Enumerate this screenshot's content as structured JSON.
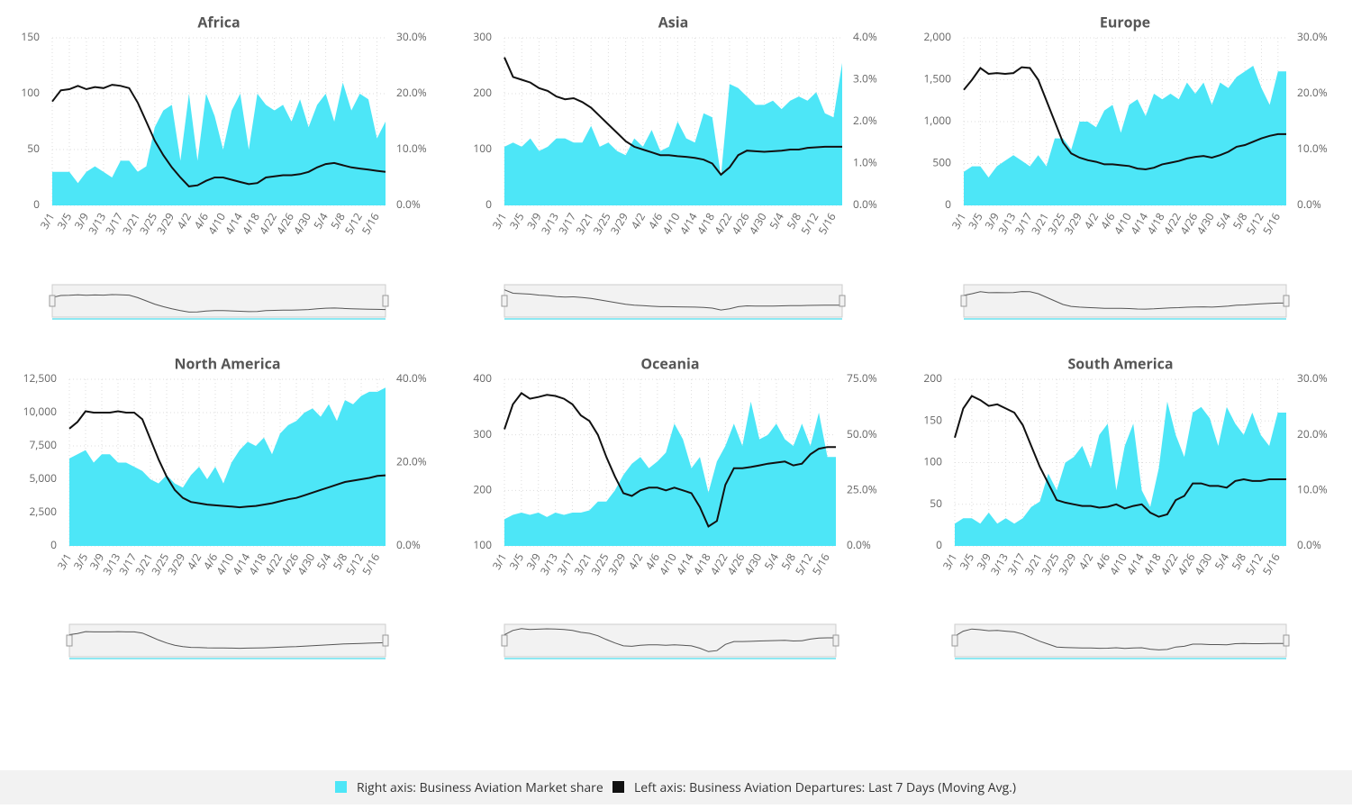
{
  "chart_data": [
    {
      "type": "area-line",
      "title": "Africa",
      "categories": [
        "3/1",
        null,
        "3/5",
        null,
        "3/9",
        null,
        "3/13",
        null,
        "3/17",
        null,
        "3/21",
        null,
        "3/25",
        null,
        "3/29",
        null,
        "4/2",
        null,
        "4/6",
        null,
        "4/10",
        null,
        "4/14",
        null,
        "4/18",
        null,
        "4/22",
        null,
        "4/26",
        null,
        "4/30",
        null,
        "5/4",
        null,
        "5/8",
        null,
        "5/12",
        null,
        "5/16",
        null
      ],
      "ylim": [
        0,
        150
      ],
      "yticks": [
        0,
        50,
        100,
        150
      ],
      "y2lim": [
        0,
        30
      ],
      "y2ticks": [
        {
          "value": 0,
          "label": "0.0%"
        },
        {
          "value": 10,
          "label": "10.0%"
        },
        {
          "value": 20,
          "label": "20.0%"
        },
        {
          "value": 30,
          "label": "30.0%"
        }
      ],
      "grid": true,
      "series": [
        {
          "name": "Right axis: Business Aviation Market share",
          "color": "#4de6f7",
          "axis": "y2",
          "values": [
            6,
            6,
            6,
            4,
            6,
            7,
            6,
            5,
            8,
            8,
            6,
            7,
            14,
            17,
            18,
            8,
            20,
            8,
            20,
            16,
            10,
            17,
            20,
            10,
            20,
            18,
            17,
            18,
            15,
            19,
            14,
            18,
            20,
            15,
            22,
            17,
            20,
            19,
            12,
            15
          ]
        },
        {
          "name": "Left axis: Business Aviation Departures: Last 7 Days (Moving Avg.)",
          "color": "#111111",
          "values": [
            93,
            103,
            104,
            107,
            104,
            106,
            105,
            108,
            107,
            105,
            92,
            75,
            58,
            45,
            34,
            25,
            17,
            18,
            22,
            25,
            25,
            23,
            21,
            19,
            20,
            25,
            26,
            27,
            27,
            28,
            30,
            34,
            37,
            38,
            36,
            34,
            33,
            32,
            31,
            30
          ]
        }
      ]
    },
    {
      "type": "area-line",
      "title": "Asia",
      "categories": [
        "3/1",
        null,
        "3/5",
        null,
        "3/9",
        null,
        "3/13",
        null,
        "3/17",
        null,
        "3/21",
        null,
        "3/25",
        null,
        "3/29",
        null,
        "4/2",
        null,
        "4/6",
        null,
        "4/10",
        null,
        "4/14",
        null,
        "4/18",
        null,
        "4/22",
        null,
        "4/26",
        null,
        "4/30",
        null,
        "5/4",
        null,
        "5/8",
        null,
        "5/12",
        null,
        "5/16",
        null
      ],
      "ylim": [
        0,
        300
      ],
      "yticks": [
        0,
        100,
        200,
        300
      ],
      "y2lim": [
        0,
        4
      ],
      "y2ticks": [
        {
          "value": 0,
          "label": "0.0%"
        },
        {
          "value": 1,
          "label": "1.0%"
        },
        {
          "value": 2,
          "label": "2.0%"
        },
        {
          "value": 3,
          "label": "3.0%"
        },
        {
          "value": 4,
          "label": "4.0%"
        }
      ],
      "grid": true,
      "series": [
        {
          "name": "Right axis: Business Aviation Market share",
          "color": "#4de6f7",
          "axis": "y2",
          "values": [
            1.4,
            1.5,
            1.4,
            1.6,
            1.3,
            1.4,
            1.6,
            1.6,
            1.5,
            1.5,
            1.9,
            1.4,
            1.5,
            1.3,
            1.2,
            1.6,
            1.4,
            1.8,
            1.3,
            1.4,
            2.0,
            1.6,
            1.5,
            2.2,
            2.1,
            0.7,
            2.9,
            2.8,
            2.6,
            2.4,
            2.4,
            2.5,
            2.3,
            2.5,
            2.6,
            2.5,
            2.7,
            2.2,
            2.1,
            3.4
          ]
        },
        {
          "name": "Left axis: Business Aviation Departures: Last 7 Days (Moving Avg.)",
          "color": "#111111",
          "values": [
            265,
            230,
            225,
            220,
            210,
            205,
            195,
            190,
            192,
            185,
            175,
            160,
            145,
            130,
            115,
            105,
            100,
            95,
            90,
            90,
            88,
            87,
            85,
            82,
            75,
            55,
            68,
            90,
            98,
            97,
            96,
            97,
            98,
            100,
            100,
            103,
            104,
            105,
            105,
            105
          ]
        }
      ]
    },
    {
      "type": "area-line",
      "title": "Europe",
      "categories": [
        "3/1",
        null,
        "3/5",
        null,
        "3/9",
        null,
        "3/13",
        null,
        "3/17",
        null,
        "3/21",
        null,
        "3/25",
        null,
        "3/29",
        null,
        "4/2",
        null,
        "4/6",
        null,
        "4/10",
        null,
        "4/14",
        null,
        "4/18",
        null,
        "4/22",
        null,
        "4/26",
        null,
        "4/30",
        null,
        "5/4",
        null,
        "5/8",
        null,
        "5/12",
        null,
        "5/16",
        null
      ],
      "ylim": [
        0,
        2000
      ],
      "yticks": [
        0,
        500,
        {
          "value": 1000,
          "label": "1,000"
        },
        {
          "value": 1500,
          "label": "1,500"
        },
        {
          "value": 2000,
          "label": "2,000"
        }
      ],
      "y2lim": [
        0,
        30
      ],
      "y2ticks": [
        {
          "value": 0,
          "label": "0.0%"
        },
        {
          "value": 10,
          "label": "10.0%"
        },
        {
          "value": 20,
          "label": "20.0%"
        },
        {
          "value": 30,
          "label": "30.0%"
        }
      ],
      "grid": true,
      "series": [
        {
          "name": "Right axis: Business Aviation Market share",
          "color": "#4de6f7",
          "axis": "y2",
          "values": [
            6,
            7,
            7,
            5,
            7,
            8,
            9,
            8,
            7,
            9,
            7,
            12,
            12,
            10,
            15,
            15,
            14,
            17,
            18,
            13,
            18,
            19,
            16,
            20,
            19,
            20,
            19,
            22,
            20,
            22,
            18,
            22,
            21,
            23,
            24,
            25,
            21,
            18,
            24,
            24
          ]
        },
        {
          "name": "Left axis: Business Aviation Departures: Last 7 Days (Moving Avg.)",
          "color": "#111111",
          "values": [
            1380,
            1500,
            1640,
            1570,
            1580,
            1570,
            1580,
            1650,
            1640,
            1500,
            1250,
            1000,
            750,
            620,
            570,
            540,
            520,
            490,
            490,
            480,
            470,
            440,
            430,
            450,
            490,
            510,
            530,
            560,
            580,
            590,
            570,
            600,
            640,
            700,
            720,
            760,
            800,
            830,
            850,
            850
          ]
        }
      ]
    },
    {
      "type": "area-line",
      "title": "North America",
      "categories": [
        "3/1",
        null,
        "3/5",
        null,
        "3/9",
        null,
        "3/13",
        null,
        "3/17",
        null,
        "3/21",
        null,
        "3/25",
        null,
        "3/29",
        null,
        "4/2",
        null,
        "4/6",
        null,
        "4/10",
        null,
        "4/14",
        null,
        "4/18",
        null,
        "4/22",
        null,
        "4/26",
        null,
        "4/30",
        null,
        "5/4",
        null,
        "5/8",
        null,
        "5/12",
        null,
        "5/16",
        null
      ],
      "ylim": [
        0,
        12500
      ],
      "yticks": [
        0,
        {
          "value": 2500,
          "label": "2,500"
        },
        {
          "value": 5000,
          "label": "5,000"
        },
        {
          "value": 7500,
          "label": "7,500"
        },
        {
          "value": 10000,
          "label": "10,000"
        },
        {
          "value": 12500,
          "label": "12,500"
        }
      ],
      "y2lim": [
        0,
        40
      ],
      "y2ticks": [
        {
          "value": 0,
          "label": "0.0%"
        },
        {
          "value": 20,
          "label": "20.0%"
        },
        {
          "value": 40,
          "label": "40.0%"
        }
      ],
      "grid": true,
      "series": [
        {
          "name": "Right axis: Business Aviation Market share",
          "color": "#4de6f7",
          "axis": "y2",
          "values": [
            21,
            22,
            23,
            20,
            22,
            22,
            20,
            20,
            19,
            18,
            16,
            15,
            17,
            15,
            14,
            17,
            19,
            16,
            19,
            15,
            20,
            23,
            25,
            24,
            26,
            22,
            27,
            29,
            30,
            32,
            33,
            31,
            34,
            30,
            35,
            34,
            36,
            37,
            37,
            38
          ]
        },
        {
          "name": "Left axis: Business Aviation Departures: Last 7 Days (Moving Avg.)",
          "color": "#111111",
          "values": [
            8800,
            9300,
            10100,
            10000,
            10000,
            10000,
            10100,
            10000,
            10000,
            9500,
            8000,
            6500,
            5200,
            4200,
            3600,
            3300,
            3200,
            3100,
            3050,
            3000,
            2950,
            2900,
            2950,
            3000,
            3100,
            3200,
            3350,
            3500,
            3600,
            3800,
            4000,
            4200,
            4400,
            4600,
            4800,
            4900,
            5000,
            5100,
            5250,
            5300
          ]
        }
      ]
    },
    {
      "type": "area-line",
      "title": "Oceania",
      "categories": [
        "3/1",
        null,
        "3/5",
        null,
        "3/9",
        null,
        "3/13",
        null,
        "3/17",
        null,
        "3/21",
        null,
        "3/25",
        null,
        "3/29",
        null,
        "4/2",
        null,
        "4/6",
        null,
        "4/10",
        null,
        "4/14",
        null,
        "4/18",
        null,
        "4/22",
        null,
        "4/26",
        null,
        "4/30",
        null,
        "5/4",
        null,
        "5/8",
        null,
        "5/12",
        null,
        "5/16",
        null
      ],
      "ylim": [
        100,
        400
      ],
      "yticks": [
        100,
        200,
        300,
        400
      ],
      "y2lim": [
        0,
        75
      ],
      "y2ticks": [
        {
          "value": 0,
          "label": "0.0%"
        },
        {
          "value": 25,
          "label": "25.0%"
        },
        {
          "value": 50,
          "label": "50.0%"
        },
        {
          "value": 75,
          "label": "75.0%"
        }
      ],
      "grid": true,
      "series": [
        {
          "name": "Right axis: Business Aviation Market share",
          "color": "#4de6f7",
          "axis": "y2",
          "values": [
            12,
            14,
            15,
            14,
            15,
            13,
            15,
            14,
            15,
            15,
            16,
            20,
            20,
            25,
            32,
            37,
            40,
            35,
            38,
            42,
            55,
            48,
            35,
            40,
            24,
            38,
            45,
            55,
            45,
            65,
            48,
            50,
            55,
            48,
            45,
            55,
            45,
            60,
            40,
            40
          ]
        },
        {
          "name": "Left axis: Business Aviation Departures: Last 7 Days (Moving Avg.)",
          "color": "#111111",
          "values": [
            310,
            355,
            375,
            365,
            368,
            372,
            370,
            365,
            355,
            335,
            325,
            300,
            260,
            225,
            195,
            190,
            200,
            205,
            205,
            200,
            205,
            200,
            195,
            170,
            135,
            145,
            210,
            240,
            240,
            242,
            245,
            248,
            250,
            252,
            245,
            248,
            265,
            275,
            278,
            278
          ]
        }
      ]
    },
    {
      "type": "area-line",
      "title": "South America",
      "categories": [
        "3/1",
        null,
        "3/5",
        null,
        "3/9",
        null,
        "3/13",
        null,
        "3/17",
        null,
        "3/21",
        null,
        "3/25",
        null,
        "3/29",
        null,
        "4/2",
        null,
        "4/6",
        null,
        "4/10",
        null,
        "4/14",
        null,
        "4/18",
        null,
        "4/22",
        null,
        "4/26",
        null,
        "4/30",
        null,
        "5/4",
        null,
        "5/8",
        null,
        "5/12",
        null,
        "5/16",
        null
      ],
      "ylim": [
        0,
        200
      ],
      "yticks": [
        0,
        50,
        100,
        150,
        200
      ],
      "y2lim": [
        0,
        30
      ],
      "y2ticks": [
        {
          "value": 0,
          "label": "0.0%"
        },
        {
          "value": 10,
          "label": "10.0%"
        },
        {
          "value": 20,
          "label": "20.0%"
        },
        {
          "value": 30,
          "label": "30.0%"
        }
      ],
      "grid": true,
      "series": [
        {
          "name": "Right axis: Business Aviation Market share",
          "color": "#4de6f7",
          "axis": "y2",
          "values": [
            4,
            5,
            5,
            4,
            6,
            4,
            5,
            4,
            5,
            7,
            8,
            13,
            10,
            15,
            16,
            18,
            14,
            20,
            22,
            10,
            18,
            22,
            10,
            7,
            14,
            26,
            20,
            16,
            24,
            25,
            23,
            18,
            25,
            22,
            20,
            24,
            20,
            18,
            24,
            24
          ]
        },
        {
          "name": "Left axis: Business Aviation Departures: Last 7 Days (Moving Avg.)",
          "color": "#111111",
          "values": [
            130,
            165,
            180,
            175,
            168,
            170,
            165,
            160,
            145,
            120,
            95,
            75,
            55,
            52,
            50,
            48,
            48,
            46,
            47,
            50,
            45,
            48,
            50,
            40,
            35,
            38,
            55,
            60,
            75,
            75,
            72,
            72,
            70,
            78,
            80,
            78,
            78,
            80,
            80,
            80
          ]
        }
      ]
    }
  ]
}
